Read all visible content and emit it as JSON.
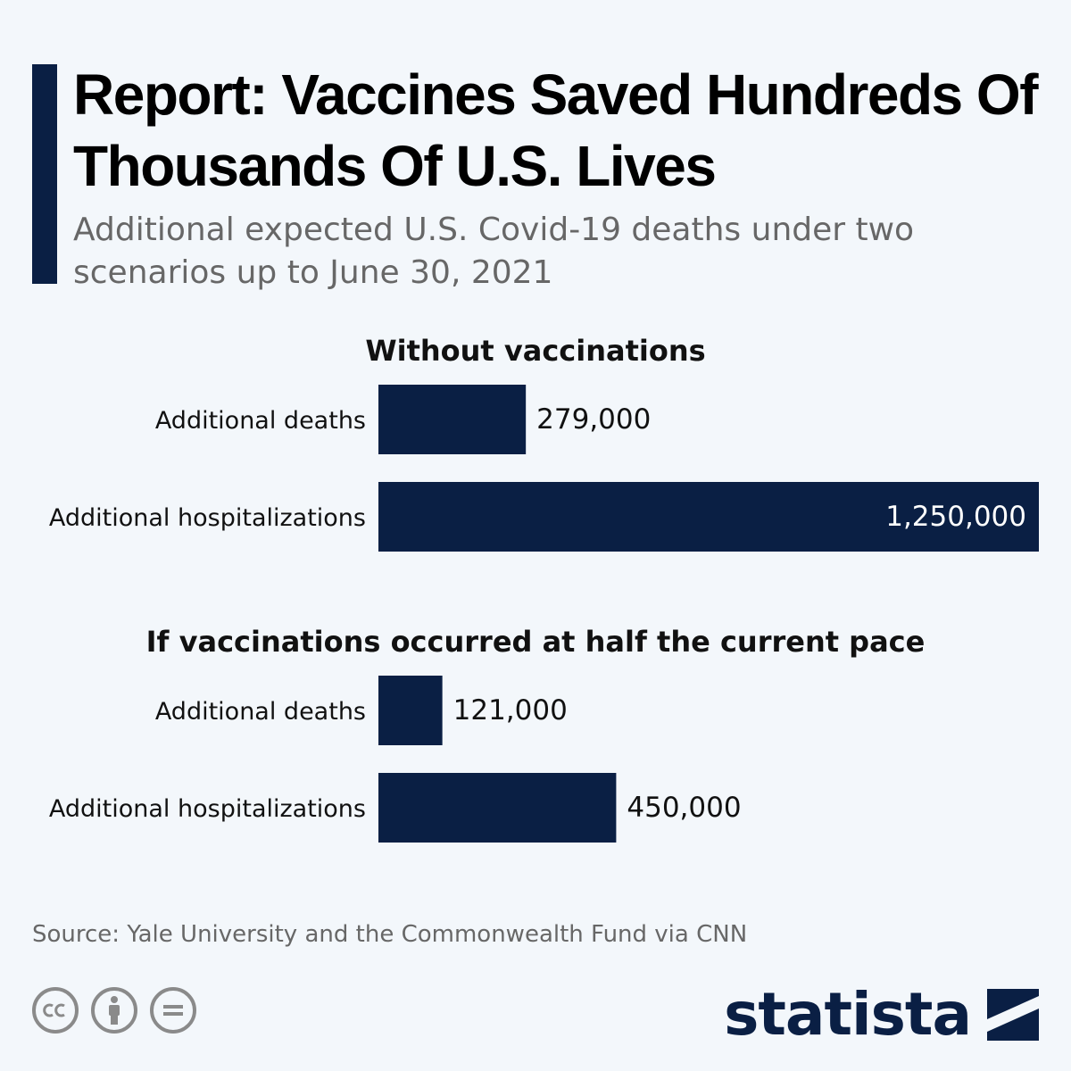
{
  "header": {
    "title": "Report: Vaccines Saved Hundreds Of Thousands Of U.S. Lives",
    "subtitle": "Additional expected U.S. Covid-19 deaths under two scenarios up to June 30, 2021"
  },
  "chart_data": {
    "type": "bar",
    "orientation": "horizontal",
    "xlim": [
      0,
      1250000
    ],
    "bar_color": "#0a1f44",
    "groups": [
      {
        "title": "Without vaccinations",
        "categories": [
          "Additional deaths",
          "Additional hospitalizations"
        ],
        "values": [
          279000,
          1250000
        ],
        "labels": [
          "279,000",
          "1,250,000"
        ]
      },
      {
        "title": "If vaccinations occurred at half the current pace",
        "categories": [
          "Additional deaths",
          "Additional hospitalizations"
        ],
        "values": [
          121000,
          450000
        ],
        "labels": [
          "121,000",
          "450,000"
        ]
      }
    ]
  },
  "footer": {
    "source": "Source: Yale University and the Commonwealth Fund via CNN",
    "logo_text": "statista",
    "license_icons": [
      "cc-icon",
      "attribution-icon",
      "no-derivatives-icon"
    ]
  },
  "colors": {
    "background": "#f3f7fb",
    "accent": "#0a1f44",
    "muted_text": "#676767"
  }
}
